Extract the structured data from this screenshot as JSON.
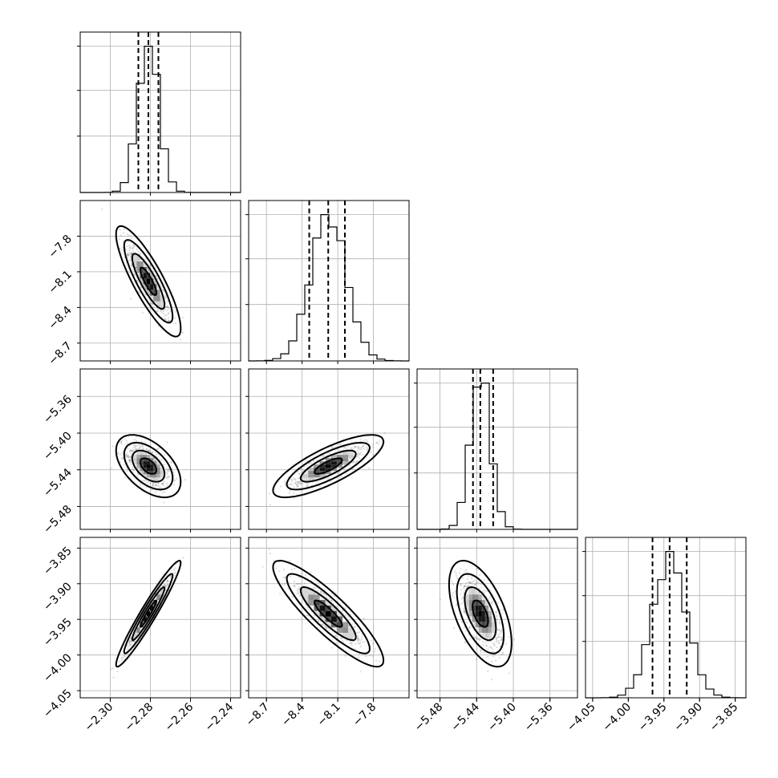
{
  "chart_data": {
    "type": "corner",
    "title": "",
    "grid": true,
    "parameters": [
      {
        "index": 0,
        "median": -2.281,
        "q16": -2.286,
        "q84": -2.276,
        "sigma": 0.0052,
        "range": [
          -2.315,
          -2.235
        ],
        "ticks": [
          -2.3,
          -2.28,
          -2.26,
          -2.24
        ],
        "tick_labels": [
          "−2.30",
          "−2.28",
          "−2.26",
          "−2.24"
        ]
      },
      {
        "index": 1,
        "median": -8.18,
        "q16": -8.34,
        "q84": -8.04,
        "sigma": 0.15,
        "range": [
          -8.85,
          -7.5
        ],
        "ticks": [
          -8.7,
          -8.4,
          -8.1,
          -7.8
        ],
        "tick_labels": [
          "−8.7",
          "−8.4",
          "−8.1",
          "−7.8"
        ]
      },
      {
        "index": 2,
        "median": -5.436,
        "q16": -5.444,
        "q84": -5.422,
        "sigma": 0.011,
        "range": [
          -5.505,
          -5.33
        ],
        "ticks": [
          -5.48,
          -5.44,
          -5.4,
          -5.36
        ],
        "tick_labels": [
          "−5.48",
          "−5.44",
          "−5.40",
          "−5.36"
        ]
      },
      {
        "index": 3,
        "median": -3.942,
        "q16": -3.966,
        "q84": -3.918,
        "sigma": 0.024,
        "range": [
          -4.06,
          -3.835
        ],
        "ticks": [
          -4.05,
          -4.0,
          -3.95,
          -3.9,
          -3.85
        ],
        "tick_labels": [
          "−4.05",
          "−4.00",
          "−3.95",
          "−3.90",
          "−3.85"
        ]
      }
    ],
    "correlations": [
      {
        "x": 0,
        "y": 1,
        "rho": -0.85
      },
      {
        "x": 0,
        "y": 2,
        "rho": -0.5
      },
      {
        "x": 1,
        "y": 2,
        "rho": 0.78
      },
      {
        "x": 0,
        "y": 3,
        "rho": 0.96
      },
      {
        "x": 1,
        "y": 3,
        "rho": -0.88
      },
      {
        "x": 2,
        "y": 3,
        "rho": -0.55
      }
    ],
    "histogram_bins": 20,
    "contour_levels_sigma": [
      0.5,
      1.0,
      1.5,
      2.0
    ]
  }
}
